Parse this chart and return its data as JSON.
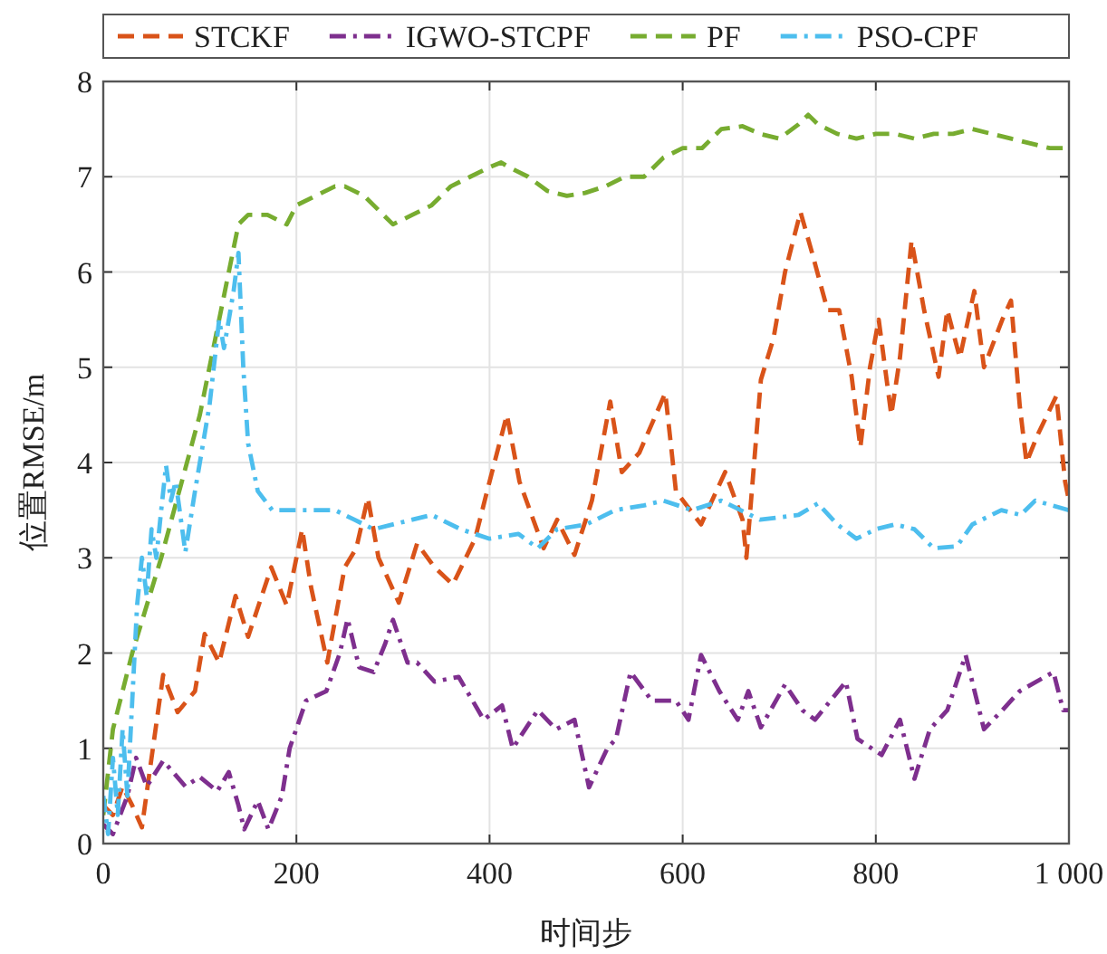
{
  "chart_data": {
    "type": "line",
    "xlabel": "时间步",
    "ylabel": "位置RMSE/m",
    "xlim": [
      0,
      1000
    ],
    "ylim": [
      0,
      8
    ],
    "xticks": [
      0,
      200,
      400,
      600,
      800,
      {
        "value": 1000,
        "label": "1 000"
      }
    ],
    "yticks": [
      0,
      1,
      2,
      3,
      4,
      5,
      6,
      7,
      8
    ],
    "grid": true,
    "legend": "top",
    "series": [
      {
        "name": "STCKF",
        "color": "#d95319",
        "line_style": "dashed",
        "x": [
          0,
          10,
          20,
          30,
          40,
          50,
          62,
          77,
          95,
          105,
          120,
          137,
          150,
          174,
          190,
          206,
          215,
          232,
          250,
          262,
          274,
          285,
          306,
          325,
          343,
          362,
          385,
          400,
          418,
          431,
          456,
          470,
          488,
          506,
          525,
          537,
          555,
          582,
          593,
          619,
          644,
          662,
          666,
          681,
          694,
          706,
          722,
          734,
          750,
          762,
          775,
          784,
          794,
          803,
          816,
          825,
          837,
          850,
          865,
          874,
          887,
          902,
          912,
          931,
          940,
          949,
          956,
          968,
          987,
          996,
          1000
        ],
        "values": [
          0.4,
          0.3,
          0.6,
          0.4,
          0.17,
          0.9,
          1.77,
          1.38,
          1.6,
          2.2,
          1.9,
          2.6,
          2.17,
          2.9,
          2.5,
          3.3,
          2.7,
          1.9,
          2.9,
          3.1,
          3.63,
          3.0,
          2.53,
          3.15,
          2.9,
          2.72,
          3.2,
          3.8,
          4.5,
          3.8,
          3.1,
          3.4,
          3.03,
          3.6,
          4.64,
          3.9,
          4.1,
          4.73,
          3.7,
          3.35,
          3.9,
          3.4,
          3.0,
          4.87,
          5.3,
          6.0,
          6.63,
          6.2,
          5.6,
          5.6,
          4.9,
          4.16,
          5.0,
          5.5,
          4.5,
          5.1,
          6.33,
          5.6,
          4.9,
          5.6,
          5.1,
          5.8,
          5.0,
          5.5,
          5.7,
          4.6,
          4.0,
          4.3,
          4.7,
          3.8,
          3.6
        ]
      },
      {
        "name": "IGWO-STCPF",
        "color": "#7e2f8e",
        "line_style": "dashdot",
        "x": [
          0,
          10,
          25,
          34,
          45,
          62,
          85,
          100,
          118,
          130,
          140,
          146,
          160,
          171,
          185,
          193,
          210,
          231,
          245,
          253,
          265,
          280,
          292,
          300,
          315,
          325,
          343,
          368,
          394,
          413,
          424,
          450,
          469,
          488,
          503,
          522,
          531,
          546,
          568,
          593,
          606,
          619,
          638,
          657,
          668,
          681,
          706,
          724,
          737,
          769,
          781,
          806,
          825,
          840,
          856,
          874,
          893,
          912,
          931,
          949,
          975,
          984,
          994,
          1000
        ],
        "values": [
          0.2,
          0.1,
          0.5,
          0.9,
          0.6,
          0.87,
          0.6,
          0.7,
          0.55,
          0.75,
          0.4,
          0.15,
          0.45,
          0.15,
          0.5,
          1.0,
          1.5,
          1.6,
          2.0,
          2.36,
          1.85,
          1.8,
          2.1,
          2.35,
          1.9,
          1.9,
          1.7,
          1.75,
          1.3,
          1.45,
          1.0,
          1.4,
          1.2,
          1.3,
          0.59,
          1.0,
          1.1,
          1.8,
          1.5,
          1.5,
          1.3,
          1.98,
          1.6,
          1.3,
          1.6,
          1.22,
          1.67,
          1.4,
          1.3,
          1.7,
          1.1,
          0.93,
          1.3,
          0.68,
          1.2,
          1.4,
          1.98,
          1.2,
          1.4,
          1.6,
          1.75,
          1.8,
          1.4,
          1.4
        ]
      },
      {
        "name": "PF",
        "color": "#77ac30",
        "line_style": "dashed",
        "x": [
          0,
          10,
          30,
          60,
          100,
          120,
          140,
          150,
          170,
          190,
          200,
          220,
          240,
          250,
          270,
          290,
          300,
          320,
          340,
          360,
          380,
          400,
          412,
          420,
          440,
          460,
          480,
          499,
          520,
          540,
          560,
          580,
          600,
          620,
          640,
          662,
          680,
          700,
          720,
          730,
          740,
          760,
          780,
          800,
          820,
          840,
          860,
          880,
          900,
          920,
          940,
          960,
          980,
          1000
        ],
        "values": [
          0.3,
          1.2,
          2.0,
          3.0,
          4.5,
          5.5,
          6.5,
          6.6,
          6.6,
          6.5,
          6.7,
          6.8,
          6.9,
          6.9,
          6.8,
          6.6,
          6.5,
          6.6,
          6.7,
          6.9,
          7.0,
          7.1,
          7.15,
          7.1,
          7.0,
          6.85,
          6.8,
          6.83,
          6.9,
          7.0,
          7.0,
          7.2,
          7.3,
          7.3,
          7.5,
          7.53,
          7.45,
          7.4,
          7.55,
          7.65,
          7.55,
          7.45,
          7.4,
          7.45,
          7.45,
          7.4,
          7.45,
          7.45,
          7.5,
          7.45,
          7.4,
          7.35,
          7.3,
          7.3
        ]
      },
      {
        "name": "PSO-CPF",
        "color": "#4dbeee",
        "line_style": "dashdot",
        "x": [
          0,
          5,
          10,
          15,
          20,
          25,
          30,
          35,
          40,
          45,
          50,
          55,
          60,
          65,
          70,
          75,
          85,
          95,
          100,
          110,
          120,
          125,
          135,
          140,
          145,
          150,
          160,
          175,
          200,
          240,
          260,
          280,
          300,
          320,
          340,
          370,
          400,
          430,
          450,
          470,
          500,
          530,
          560,
          580,
          610,
          640,
          660,
          680,
          720,
          740,
          760,
          780,
          800,
          820,
          840,
          860,
          884,
          900,
          930,
          950,
          965,
          1000
        ],
        "values": [
          0.5,
          0.1,
          0.9,
          0.3,
          1.2,
          0.5,
          1.5,
          2.5,
          3.0,
          2.6,
          3.3,
          3.0,
          3.5,
          3.97,
          3.6,
          3.8,
          3.06,
          3.7,
          4.0,
          4.6,
          5.5,
          5.2,
          5.8,
          6.2,
          5.0,
          4.2,
          3.7,
          3.5,
          3.5,
          3.5,
          3.4,
          3.3,
          3.35,
          3.4,
          3.45,
          3.3,
          3.2,
          3.25,
          3.1,
          3.3,
          3.35,
          3.5,
          3.55,
          3.6,
          3.5,
          3.6,
          3.5,
          3.4,
          3.45,
          3.57,
          3.35,
          3.2,
          3.3,
          3.35,
          3.3,
          3.1,
          3.12,
          3.35,
          3.5,
          3.45,
          3.6,
          3.5
        ]
      }
    ]
  }
}
